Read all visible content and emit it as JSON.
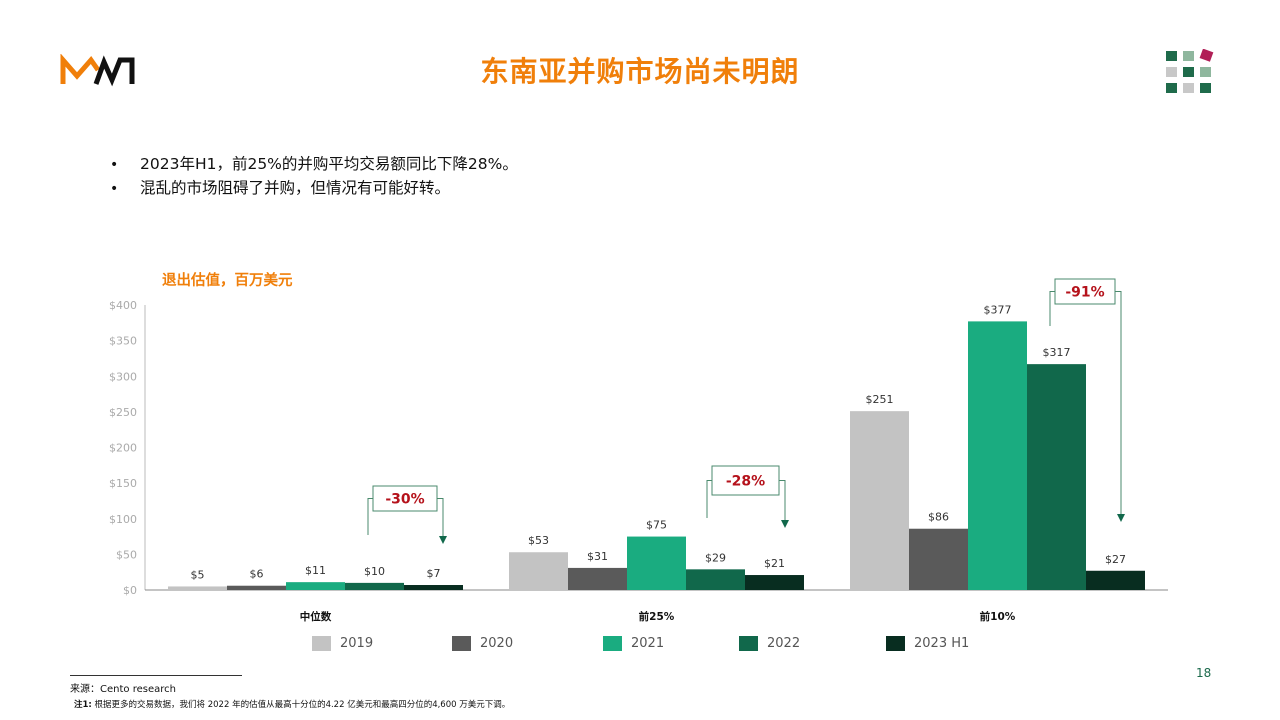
{
  "header": {
    "title": "东南亚并购市场尚未明朗",
    "logo_text": "MW"
  },
  "bullets": [
    "2023年H1，前25%的并购平均交易额同比下降28%。",
    "混乱的市场阻碍了并购，但情况有可能好转。"
  ],
  "bullet_symbol": "•",
  "chart_label": "退出估值，百万美元",
  "colors": {
    "accent": "#f07f0a",
    "2019": "#c3c3c3",
    "2020": "#5a5a5a",
    "2021": "#1aac80",
    "2022": "#11684b",
    "2023 H1": "#082d20",
    "callout": "#b5121b"
  },
  "chart_data": {
    "type": "bar",
    "title": "",
    "xlabel": "",
    "ylabel": "",
    "ylim": [
      0,
      400
    ],
    "yticks": [
      "$0",
      "$50",
      "$100",
      "$150",
      "$200",
      "$250",
      "$300",
      "$350",
      "$400"
    ],
    "categories": [
      "中位数",
      "前25%",
      "前10%"
    ],
    "series": [
      {
        "name": "2019",
        "values": [
          5,
          53,
          251
        ],
        "labels": [
          "$5",
          "$53",
          "$251"
        ]
      },
      {
        "name": "2020",
        "values": [
          6,
          31,
          86
        ],
        "labels": [
          "$6",
          "$31",
          "$86"
        ]
      },
      {
        "name": "2021",
        "values": [
          11,
          75,
          377
        ],
        "labels": [
          "$11",
          "$75",
          "$377"
        ]
      },
      {
        "name": "2022",
        "values": [
          10,
          29,
          317
        ],
        "labels": [
          "$10",
          "$29",
          "$317"
        ]
      },
      {
        "name": "2023 H1",
        "values": [
          7,
          21,
          27
        ],
        "labels": [
          "$7",
          "$21",
          "$27"
        ]
      }
    ],
    "annotations": [
      "-30%",
      "-28%",
      "-91%"
    ],
    "legend_position": "bottom",
    "grid": false
  },
  "footer": {
    "source": "来源：Cento research",
    "note_label": "注1:",
    "note_text": " 根据更多的交易数据，我们将 2022 年的估值从最高十分位的4.22 亿美元和最高四分位的4,600 万美元下调。",
    "page_number": "18"
  }
}
